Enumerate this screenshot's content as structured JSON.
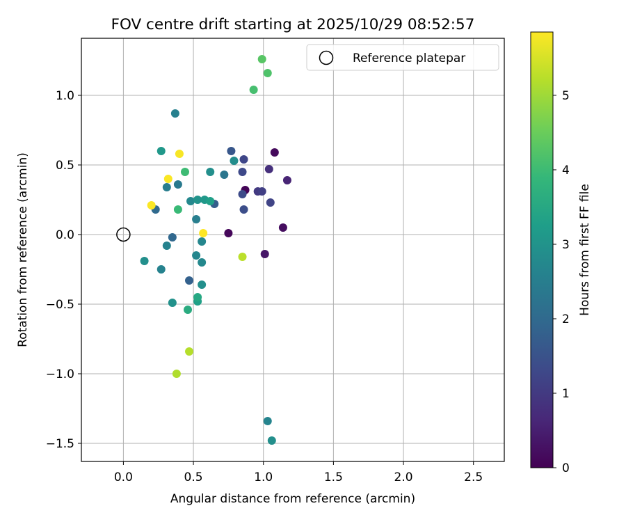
{
  "chart_data": {
    "type": "scatter",
    "title": "FOV centre drift starting at 2025/10/29 08:52:57",
    "xlabel": "Angular distance from reference (arcmin)",
    "ylabel": "Rotation from reference (arcmin)",
    "xlim": [
      -0.3,
      2.72
    ],
    "ylim": [
      -1.63,
      1.41
    ],
    "xticks": [
      0.0,
      0.5,
      1.0,
      1.5,
      2.0,
      2.5
    ],
    "xtick_labels": [
      "0.0",
      "0.5",
      "1.0",
      "1.5",
      "2.0",
      "2.5"
    ],
    "yticks": [
      -1.5,
      -1.0,
      -0.5,
      0.0,
      0.5,
      1.0
    ],
    "ytick_labels": [
      "−1.5",
      "−1.0",
      "−0.5",
      "0.0",
      "0.5",
      "1.0"
    ],
    "grid": true,
    "legend": {
      "placement": "top-right",
      "entries": [
        "Reference platepar"
      ]
    },
    "reference_point": {
      "x": 0.0,
      "y": 0.0,
      "label": "Reference platepar"
    },
    "colorbar": {
      "label": "Hours from first FF file",
      "min": 0,
      "max": 5.85,
      "ticks": [
        0,
        1,
        2,
        3,
        4,
        5
      ],
      "tick_labels": [
        "0",
        "1",
        "2",
        "3",
        "4",
        "5"
      ],
      "colormap": "viridis"
    },
    "points": [
      {
        "x": 0.87,
        "y": 0.32,
        "hours": 0.05
      },
      {
        "x": 0.75,
        "y": 0.01,
        "hours": 0.1
      },
      {
        "x": 1.08,
        "y": 0.59,
        "hours": 0.15
      },
      {
        "x": 1.14,
        "y": 0.05,
        "hours": 0.2
      },
      {
        "x": 1.01,
        "y": -0.14,
        "hours": 0.35
      },
      {
        "x": 1.17,
        "y": 0.39,
        "hours": 0.6
      },
      {
        "x": 1.04,
        "y": 0.47,
        "hours": 0.8
      },
      {
        "x": 0.96,
        "y": 0.31,
        "hours": 1.0
      },
      {
        "x": 0.99,
        "y": 0.31,
        "hours": 1.1
      },
      {
        "x": 1.05,
        "y": 0.23,
        "hours": 1.2
      },
      {
        "x": 0.86,
        "y": 0.54,
        "hours": 1.25
      },
      {
        "x": 0.85,
        "y": 0.45,
        "hours": 1.3
      },
      {
        "x": 0.85,
        "y": 0.29,
        "hours": 1.35
      },
      {
        "x": 0.86,
        "y": 0.18,
        "hours": 1.4
      },
      {
        "x": 0.77,
        "y": 0.6,
        "hours": 1.6
      },
      {
        "x": 0.65,
        "y": 0.22,
        "hours": 1.75
      },
      {
        "x": 0.47,
        "y": -0.33,
        "hours": 1.8
      },
      {
        "x": 0.35,
        "y": -0.02,
        "hours": 1.95
      },
      {
        "x": 0.23,
        "y": 0.18,
        "hours": 2.0
      },
      {
        "x": 0.72,
        "y": 0.43,
        "hours": 2.3
      },
      {
        "x": 0.39,
        "y": 0.36,
        "hours": 2.4
      },
      {
        "x": 0.31,
        "y": 0.34,
        "hours": 2.5
      },
      {
        "x": 0.52,
        "y": 0.11,
        "hours": 2.5
      },
      {
        "x": 0.31,
        "y": -0.08,
        "hours": 2.6
      },
      {
        "x": 0.37,
        "y": 0.87,
        "hours": 2.55
      },
      {
        "x": 0.27,
        "y": -0.25,
        "hours": 2.6
      },
      {
        "x": 0.56,
        "y": -0.05,
        "hours": 2.7
      },
      {
        "x": 0.52,
        "y": -0.15,
        "hours": 2.7
      },
      {
        "x": 1.03,
        "y": -1.34,
        "hours": 2.65
      },
      {
        "x": 0.48,
        "y": 0.24,
        "hours": 2.75
      },
      {
        "x": 0.56,
        "y": -0.2,
        "hours": 2.75
      },
      {
        "x": 0.79,
        "y": 0.53,
        "hours": 2.85
      },
      {
        "x": 0.62,
        "y": 0.45,
        "hours": 2.9
      },
      {
        "x": 0.56,
        "y": -0.36,
        "hours": 2.9
      },
      {
        "x": 0.15,
        "y": -0.19,
        "hours": 2.9
      },
      {
        "x": 0.35,
        "y": -0.49,
        "hours": 2.95
      },
      {
        "x": 1.06,
        "y": -1.48,
        "hours": 2.9
      },
      {
        "x": 0.53,
        "y": 0.25,
        "hours": 3.0
      },
      {
        "x": 0.58,
        "y": 0.25,
        "hours": 3.1
      },
      {
        "x": 0.27,
        "y": 0.6,
        "hours": 3.1
      },
      {
        "x": 0.53,
        "y": -0.48,
        "hours": 3.3
      },
      {
        "x": 0.62,
        "y": 0.24,
        "hours": 3.3
      },
      {
        "x": 0.53,
        "y": -0.45,
        "hours": 3.5
      },
      {
        "x": 0.46,
        "y": -0.54,
        "hours": 3.6
      },
      {
        "x": 0.39,
        "y": 0.18,
        "hours": 3.95
      },
      {
        "x": 0.44,
        "y": 0.45,
        "hours": 4.0
      },
      {
        "x": 0.93,
        "y": 1.04,
        "hours": 4.1
      },
      {
        "x": 1.03,
        "y": 1.16,
        "hours": 4.2
      },
      {
        "x": 0.99,
        "y": 1.26,
        "hours": 4.3
      },
      {
        "x": 0.38,
        "y": -1.0,
        "hours": 5.15
      },
      {
        "x": 0.47,
        "y": -0.84,
        "hours": 5.2
      },
      {
        "x": 0.85,
        "y": -0.16,
        "hours": 5.25
      },
      {
        "x": 0.4,
        "y": 0.58,
        "hours": 5.8
      },
      {
        "x": 0.32,
        "y": 0.4,
        "hours": 5.82
      },
      {
        "x": 0.2,
        "y": 0.21,
        "hours": 5.83
      },
      {
        "x": 0.57,
        "y": 0.01,
        "hours": 5.85
      }
    ]
  }
}
